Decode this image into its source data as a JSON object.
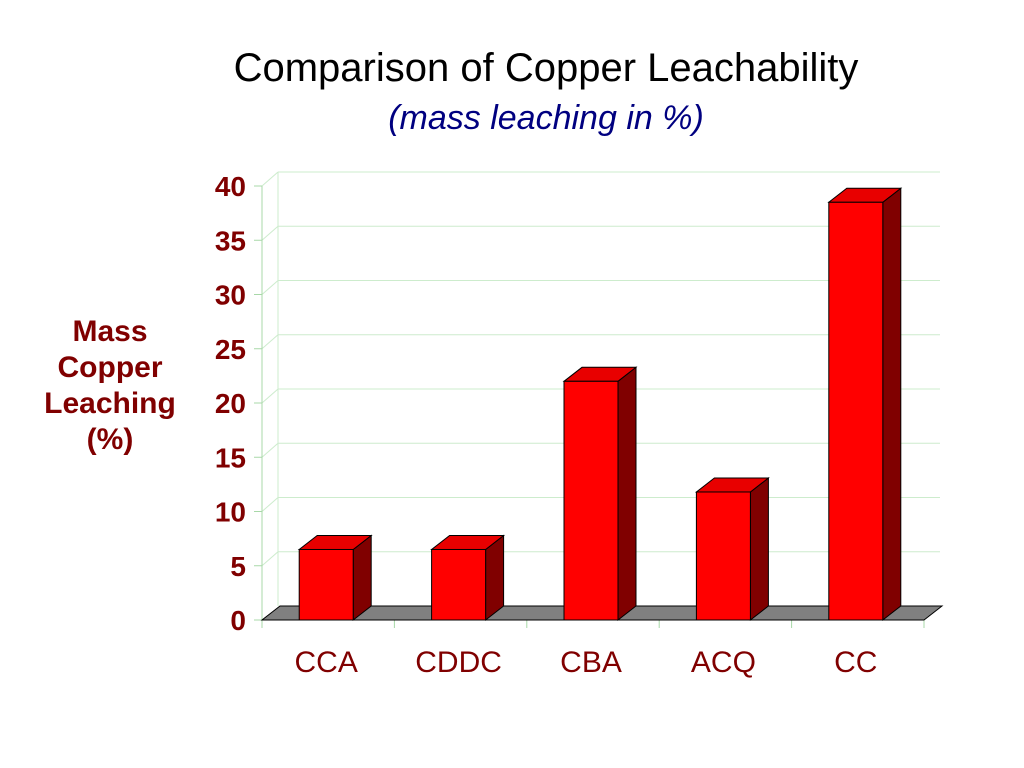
{
  "chart_data": {
    "type": "bar",
    "title": "Comparison of Copper Leachability",
    "subtitle": "(mass leaching in %)",
    "xlabel": "",
    "ylabel": "Mass\nCopper\nLeaching\n(%)",
    "categories": [
      "CCA",
      "CDDC",
      "CBA",
      "ACQ",
      "CC"
    ],
    "values": [
      6.5,
      6.5,
      22,
      11.8,
      38.5
    ],
    "ylim": [
      0,
      40
    ],
    "yticks": [
      0,
      5,
      10,
      15,
      20,
      25,
      30,
      35,
      40
    ],
    "grid": true,
    "legend": "none"
  },
  "colors": {
    "bar_front": "#ff0000",
    "bar_side": "#800000",
    "bar_top": "#e80000",
    "floor": "#808080",
    "gridline": "#cdeccd",
    "tick_text": "#800000",
    "category_text": "#800000",
    "ylabel_text": "#800000",
    "subtitle_text": "#000080"
  },
  "title_color": "#000000"
}
